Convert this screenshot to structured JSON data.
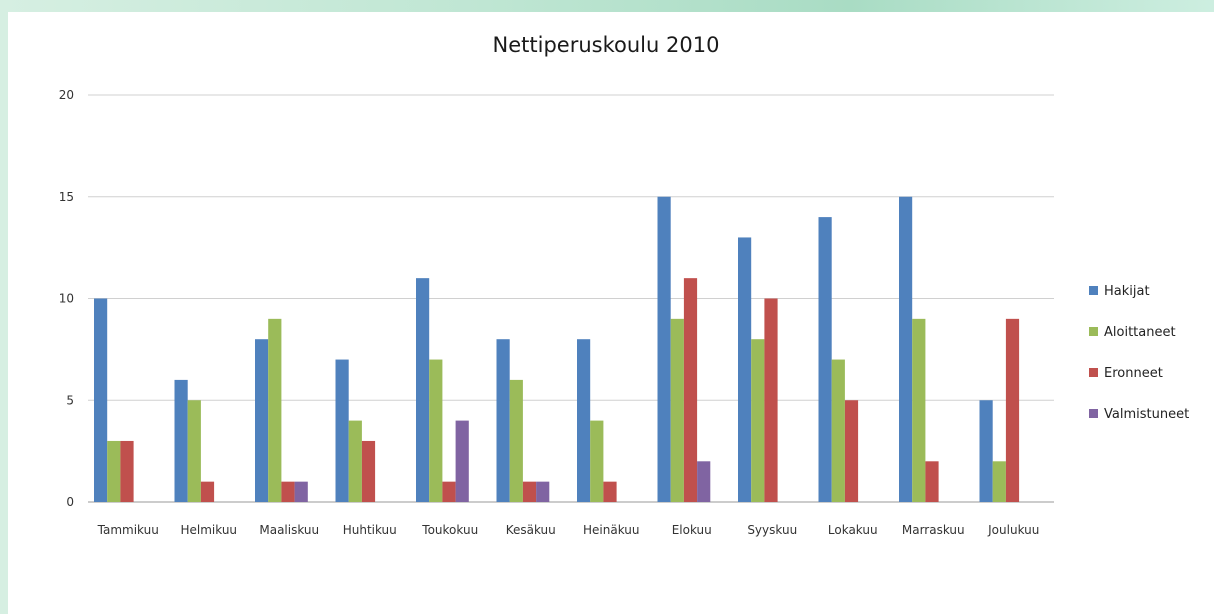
{
  "chart_data": {
    "type": "bar",
    "title": "Nettiperuskoulu 2010",
    "xlabel": "",
    "ylabel": "",
    "ylim": [
      0,
      20
    ],
    "yticks": [
      "0",
      "5",
      "10",
      "15",
      "20"
    ],
    "grid": true,
    "legend_position": "right",
    "categories": [
      "Tammikuu",
      "Helmikuu",
      "Maaliskuu",
      "Huhtikuu",
      "Toukokuu",
      "Kesäkuu",
      "Heinäkuu",
      "Elokuu",
      "Syyskuu",
      "Lokakuu",
      "Marraskuu",
      "Joulukuu"
    ],
    "series": [
      {
        "name": "Hakijat",
        "color": "#4f81bd",
        "values": [
          10,
          6,
          8,
          7,
          11,
          8,
          8,
          15,
          13,
          14,
          15,
          5
        ]
      },
      {
        "name": "Aloittaneet",
        "color": "#9bbb59",
        "values": [
          3,
          5,
          9,
          4,
          7,
          6,
          4,
          9,
          8,
          7,
          9,
          2
        ]
      },
      {
        "name": "Eronneet",
        "color": "#c0504d",
        "values": [
          3,
          1,
          1,
          3,
          1,
          1,
          1,
          11,
          10,
          5,
          2,
          9
        ]
      },
      {
        "name": "Valmistuneet",
        "color": "#8064a2",
        "values": [
          0,
          0,
          1,
          0,
          4,
          1,
          0,
          2,
          0,
          0,
          0,
          0
        ]
      }
    ]
  }
}
